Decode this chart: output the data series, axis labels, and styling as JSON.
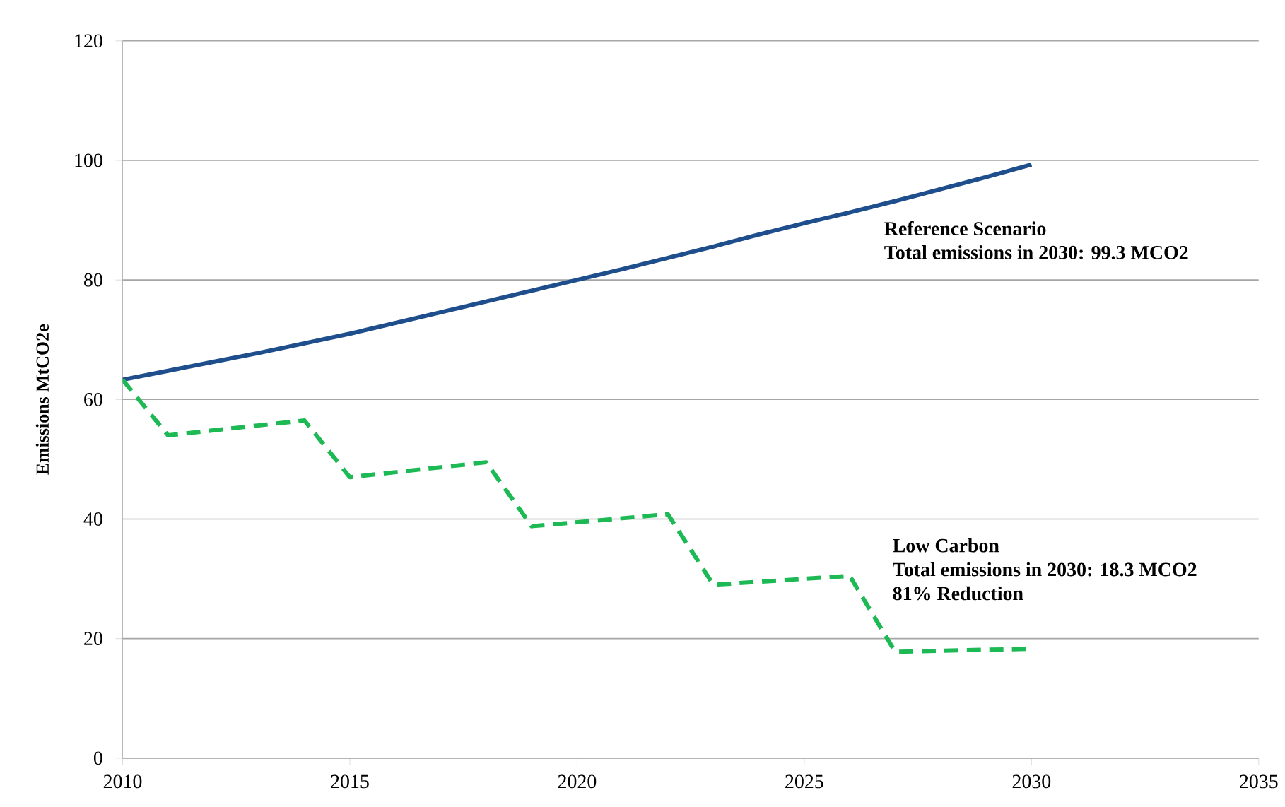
{
  "chart_data": {
    "type": "line",
    "ylabel": "Emissions MtCO2e",
    "xlim": [
      2010,
      2035
    ],
    "xticks": [
      2010,
      2015,
      2020,
      2025,
      2030,
      2035
    ],
    "ylim": [
      0,
      120
    ],
    "yticks": [
      0,
      20,
      40,
      60,
      80,
      100,
      120
    ],
    "grid": "y",
    "marker": "none",
    "series": [
      {
        "color": "#1f4e8c",
        "line_style": "solid",
        "x": [
          2010,
          2011,
          2012,
          2013,
          2014,
          2015,
          2016,
          2017,
          2018,
          2019,
          2020,
          2021,
          2022,
          2023,
          2024,
          2025,
          2026,
          2027,
          2028,
          2029,
          2030
        ],
        "values": [
          63.3,
          64.8,
          66.3,
          67.8,
          69.4,
          71.0,
          72.8,
          74.6,
          76.4,
          78.2,
          80.0,
          81.8,
          83.7,
          85.6,
          87.6,
          89.5,
          91.3,
          93.2,
          95.2,
          97.2,
          99.3
        ]
      },
      {
        "color": "#1db954",
        "line_style": "dashed",
        "x": [
          2010,
          2011,
          2014,
          2015,
          2018,
          2019,
          2022,
          2023,
          2026,
          2027,
          2030
        ],
        "values": [
          63.3,
          54,
          56.5,
          47,
          49.5,
          38.8,
          40.8,
          29,
          30.5,
          17.8,
          18.3
        ]
      }
    ],
    "annotations": [
      "**Reference Scenario**",
      "**Total emissions  in  2030:  99.3 MCO2**",
      "**Low Carbon**",
      "**Total emissions  in  2030:  18.3 MCO2**",
      "**81% Reduction**"
    ]
  }
}
